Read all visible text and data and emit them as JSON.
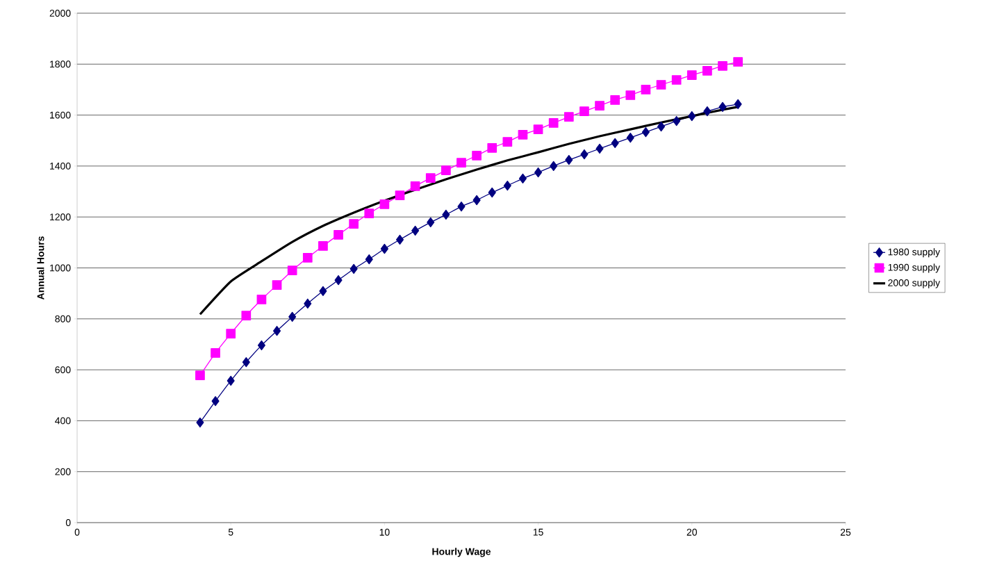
{
  "chart_data": {
    "type": "line",
    "xlabel": "Hourly Wage",
    "ylabel": "Annual Hours",
    "xlim": [
      0,
      25
    ],
    "xticks": [
      0,
      5,
      10,
      15,
      20,
      25
    ],
    "ylim": [
      0,
      2000
    ],
    "yticks": [
      0,
      200,
      400,
      600,
      800,
      1000,
      1200,
      1400,
      1600,
      1800,
      2000
    ],
    "grid": "y",
    "legend": "right",
    "series": [
      {
        "name": "1980 supply",
        "color": "#000080",
        "marker": "diamond",
        "x": [
          4,
          4.5,
          5,
          5.5,
          6,
          6.5,
          7,
          7.5,
          8,
          8.5,
          9,
          9.5,
          10,
          10.5,
          11,
          11.5,
          12,
          12.5,
          13,
          13.5,
          14,
          14.5,
          15,
          15.5,
          16,
          16.5,
          17,
          17.5,
          18,
          18.5,
          19,
          19.5,
          20,
          20.5,
          21,
          21.5
        ],
        "values": [
          393,
          477,
          557,
          630,
          696,
          753,
          808,
          860,
          909,
          952,
          996,
          1034,
          1075,
          1111,
          1146,
          1179,
          1209,
          1241,
          1266,
          1296,
          1323,
          1351,
          1375,
          1400,
          1424,
          1446,
          1468,
          1490,
          1511,
          1533,
          1555,
          1577,
          1596,
          1615,
          1632,
          1643
        ]
      },
      {
        "name": "1990 supply",
        "color": "#ff00ff",
        "marker": "square",
        "x": [
          4,
          4.5,
          5,
          5.5,
          6,
          6.5,
          7,
          7.5,
          8,
          8.5,
          9,
          9.5,
          10,
          10.5,
          11,
          11.5,
          12,
          12.5,
          13,
          13.5,
          14,
          14.5,
          15,
          15.5,
          16,
          16.5,
          17,
          17.5,
          18,
          18.5,
          19,
          19.5,
          20,
          20.5,
          21,
          21.5
        ],
        "values": [
          578,
          666,
          742,
          813,
          876,
          933,
          990,
          1040,
          1086,
          1130,
          1173,
          1214,
          1250,
          1285,
          1321,
          1353,
          1383,
          1413,
          1441,
          1471,
          1495,
          1523,
          1544,
          1569,
          1593,
          1615,
          1637,
          1659,
          1678,
          1700,
          1719,
          1738,
          1757,
          1774,
          1793,
          1809
        ]
      },
      {
        "name": "2000 supply",
        "color": "#000000",
        "marker": "none",
        "x": [
          4,
          5,
          6,
          7,
          8,
          9,
          10,
          11,
          12,
          13,
          14,
          15,
          16,
          17,
          18,
          19,
          20,
          21,
          21.5
        ],
        "values": [
          818,
          947,
          1026,
          1102,
          1165,
          1217,
          1264,
          1307,
          1348,
          1386,
          1422,
          1454,
          1487,
          1517,
          1544,
          1571,
          1596,
          1621,
          1632
        ]
      }
    ]
  }
}
